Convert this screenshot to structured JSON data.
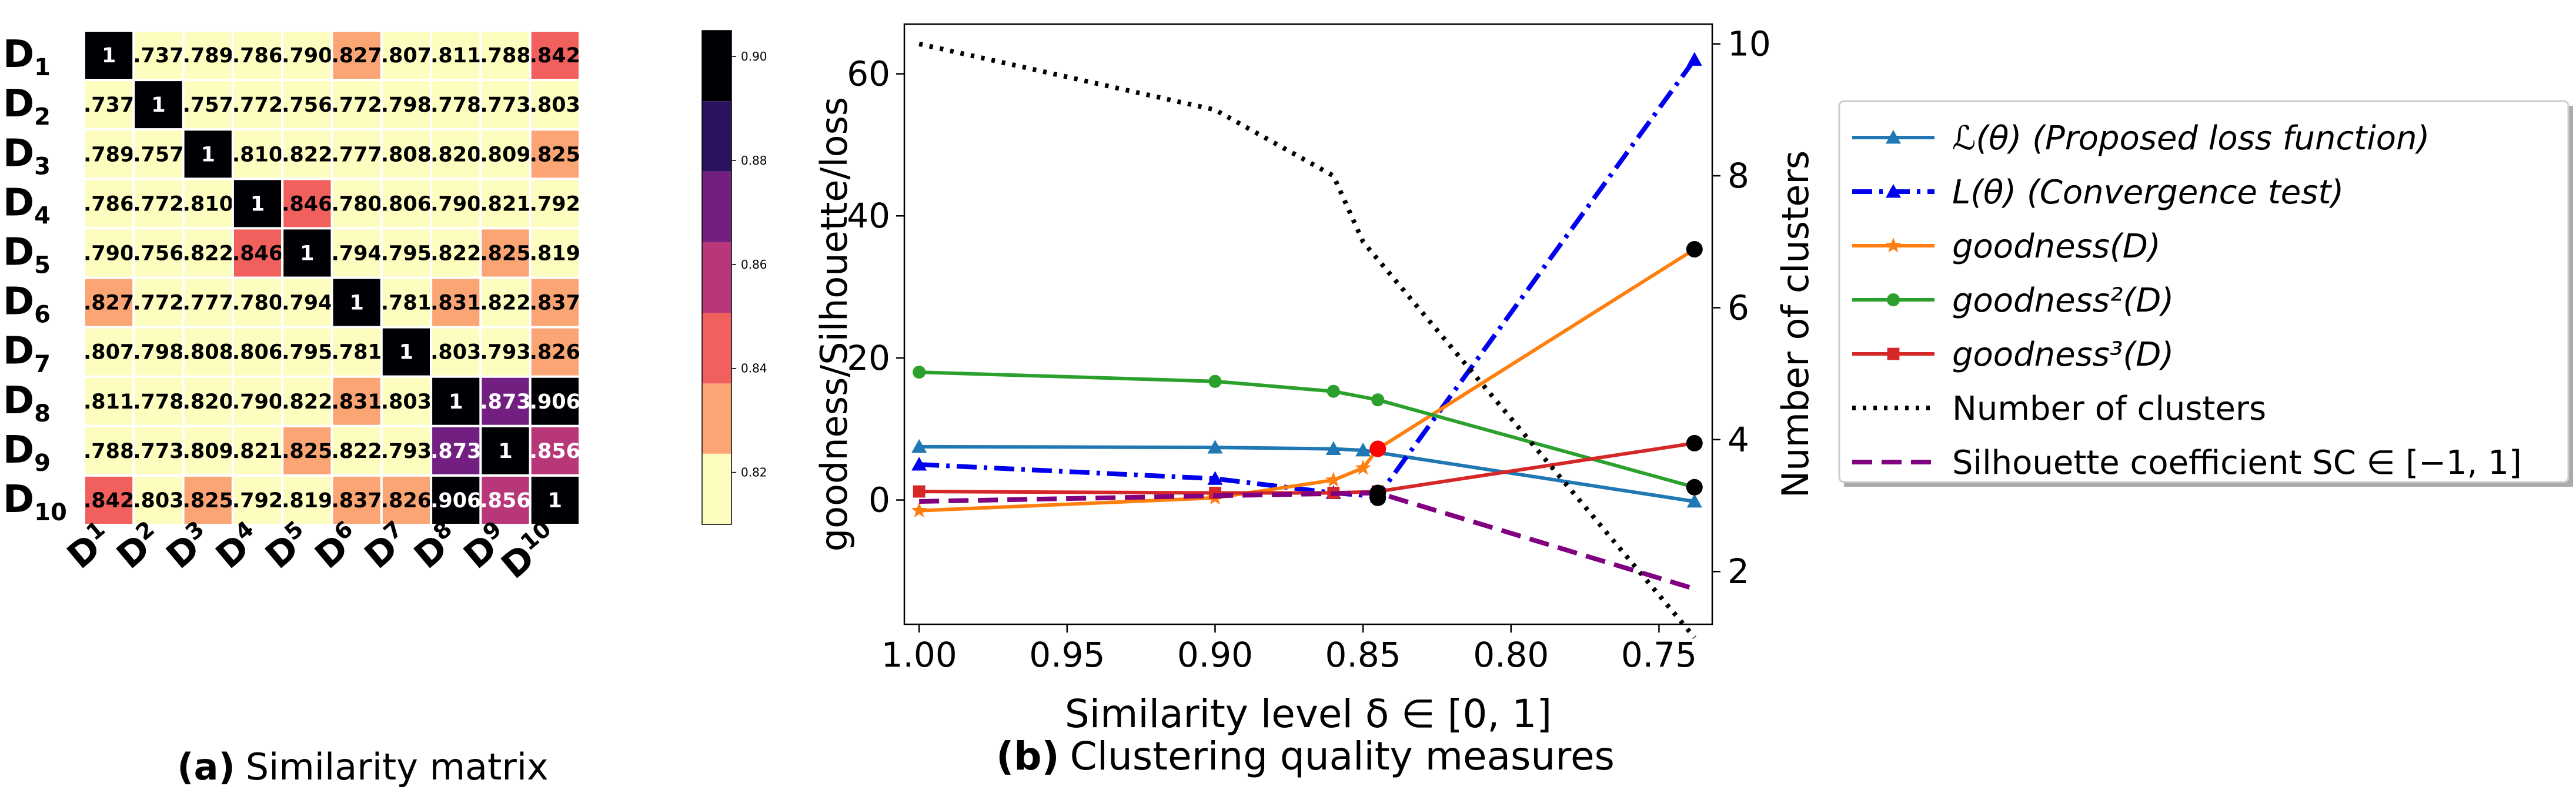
{
  "panel_a": {
    "caption_bold": "(a)",
    "caption_text": "Similarity matrix"
  },
  "panel_b": {
    "caption_bold": "(b)",
    "caption_text": "Clustering quality measures"
  },
  "chart_data": [
    {
      "type": "heatmap",
      "title": "Similarity matrix",
      "row_labels": [
        {
          "base": "D",
          "sub": "1"
        },
        {
          "base": "D",
          "sub": "2"
        },
        {
          "base": "D",
          "sub": "3"
        },
        {
          "base": "D",
          "sub": "4"
        },
        {
          "base": "D",
          "sub": "5"
        },
        {
          "base": "D",
          "sub": "6"
        },
        {
          "base": "D",
          "sub": "7"
        },
        {
          "base": "D",
          "sub": "8"
        },
        {
          "base": "D",
          "sub": "9"
        },
        {
          "base": "D",
          "sub": "10"
        }
      ],
      "col_labels": [
        {
          "base": "D",
          "sub": "1"
        },
        {
          "base": "D",
          "sub": "2"
        },
        {
          "base": "D",
          "sub": "3"
        },
        {
          "base": "D",
          "sub": "4"
        },
        {
          "base": "D",
          "sub": "5"
        },
        {
          "base": "D",
          "sub": "6"
        },
        {
          "base": "D",
          "sub": "7"
        },
        {
          "base": "D",
          "sub": "8"
        },
        {
          "base": "D",
          "sub": "9"
        },
        {
          "base": "D",
          "sub": "10"
        }
      ],
      "values": [
        [
          1,
          0.737,
          0.789,
          0.786,
          0.79,
          0.827,
          0.807,
          0.811,
          0.788,
          0.842
        ],
        [
          0.737,
          1,
          0.757,
          0.772,
          0.756,
          0.772,
          0.798,
          0.778,
          0.773,
          0.803
        ],
        [
          0.789,
          0.757,
          1,
          0.81,
          0.822,
          0.777,
          0.808,
          0.82,
          0.809,
          0.825
        ],
        [
          0.786,
          0.772,
          0.81,
          1,
          0.846,
          0.78,
          0.806,
          0.79,
          0.821,
          0.792
        ],
        [
          0.79,
          0.756,
          0.822,
          0.846,
          1,
          0.794,
          0.795,
          0.822,
          0.825,
          0.819
        ],
        [
          0.827,
          0.772,
          0.777,
          0.78,
          0.794,
          1,
          0.781,
          0.831,
          0.822,
          0.837
        ],
        [
          0.807,
          0.798,
          0.808,
          0.806,
          0.795,
          0.781,
          1,
          0.803,
          0.793,
          0.826
        ],
        [
          0.811,
          0.778,
          0.82,
          0.79,
          0.822,
          0.831,
          0.803,
          1,
          0.873,
          0.906
        ],
        [
          0.788,
          0.773,
          0.809,
          0.821,
          0.825,
          0.822,
          0.793,
          0.873,
          1,
          0.856
        ],
        [
          0.842,
          0.803,
          0.825,
          0.792,
          0.819,
          0.837,
          0.826,
          0.906,
          0.856,
          1
        ]
      ],
      "labels": [
        [
          "1",
          ".737",
          ".789",
          ".786",
          ".790",
          ".827",
          ".807",
          ".811",
          ".788",
          ".842"
        ],
        [
          ".737",
          "1",
          ".757",
          ".772",
          ".756",
          ".772",
          ".798",
          ".778",
          ".773",
          ".803"
        ],
        [
          ".789",
          ".757",
          "1",
          ".810",
          ".822",
          ".777",
          ".808",
          ".820",
          ".809",
          ".825"
        ],
        [
          ".786",
          ".772",
          ".810",
          "1",
          ".846",
          ".780",
          ".806",
          ".790",
          ".821",
          ".792"
        ],
        [
          ".790",
          ".756",
          ".822",
          ".846",
          "1",
          ".794",
          ".795",
          ".822",
          ".825",
          ".819"
        ],
        [
          ".827",
          ".772",
          ".777",
          ".780",
          ".794",
          "1",
          ".781",
          ".831",
          ".822",
          ".837"
        ],
        [
          ".807",
          ".798",
          ".808",
          ".806",
          ".795",
          ".781",
          "1",
          ".803",
          ".793",
          ".826"
        ],
        [
          ".811",
          ".778",
          ".820",
          ".790",
          ".822",
          ".831",
          ".803",
          "1",
          ".873",
          ".906"
        ],
        [
          ".788",
          ".773",
          ".809",
          ".821",
          ".825",
          ".822",
          ".793",
          ".873",
          "1",
          ".856"
        ],
        [
          ".842",
          ".803",
          ".825",
          ".792",
          ".819",
          ".837",
          ".826",
          ".906",
          ".856",
          "1"
        ]
      ],
      "colorbar": {
        "range": [
          0.81,
          0.905
        ],
        "ticks": [
          0.82,
          0.84,
          0.86,
          0.88,
          0.9
        ],
        "tick_labels": [
          "0.82",
          "0.84",
          "0.86",
          "0.88",
          "0.90"
        ],
        "bins": [
          {
            "from": 0.81,
            "to": 0.8236,
            "color": "#fcfdbf"
          },
          {
            "from": 0.8236,
            "to": 0.8371,
            "color": "#fca574"
          },
          {
            "from": 0.8371,
            "to": 0.8507,
            "color": "#f1605d"
          },
          {
            "from": 0.8507,
            "to": 0.8643,
            "color": "#b73779"
          },
          {
            "from": 0.8643,
            "to": 0.8779,
            "color": "#721f81"
          },
          {
            "from": 0.8779,
            "to": 0.8914,
            "color": "#2c115f"
          },
          {
            "from": 0.8914,
            "to": 0.905,
            "color": "#000004"
          }
        ]
      }
    },
    {
      "type": "line",
      "title": "Clustering quality measures",
      "xlabel": "Similarity level δ ∈ [0, 1]",
      "ylabel_left": "goodness/Silhouette/loss",
      "ylabel_right": "Number of clusters",
      "x_inverted": true,
      "xlim": [
        1.005,
        0.732
      ],
      "ylim_left": [
        -17.5,
        67
      ],
      "ylim_right": [
        1.2,
        10.3
      ],
      "xticks": [
        1.0,
        0.95,
        0.9,
        0.85,
        0.8,
        0.75
      ],
      "xtick_labels": [
        "1.00",
        "0.95",
        "0.90",
        "0.85",
        "0.80",
        "0.75"
      ],
      "yticks_left": [
        0,
        20,
        40,
        60
      ],
      "yticks_right": [
        2,
        4,
        6,
        8,
        10
      ],
      "series": [
        {
          "name": "ℒ(θ) (Proposed loss function)",
          "axis": "left",
          "color": "#1f77b4",
          "dash": "solid",
          "marker": "triangle",
          "x": [
            1.0,
            0.9,
            0.86,
            0.85,
            0.738
          ],
          "y": [
            7.5,
            7.4,
            7.2,
            7.0,
            -0.2
          ]
        },
        {
          "name": "L(θ) (Convergence test)",
          "axis": "left",
          "color": "#0000ee",
          "dash": "dashdot",
          "marker": "triangle",
          "x": [
            1.0,
            0.9,
            0.86,
            0.845,
            0.738
          ],
          "y": [
            5.0,
            3.0,
            1.0,
            0.5,
            62.0
          ]
        },
        {
          "name": "goodness(D)",
          "axis": "left",
          "color": "#ff7f0e",
          "dash": "solid",
          "marker": "star",
          "x": [
            1.0,
            0.9,
            0.86,
            0.85,
            0.845,
            0.738
          ],
          "y": [
            -1.5,
            0.3,
            2.8,
            4.5,
            7.2,
            35.3
          ]
        },
        {
          "name": "goodness²(D)",
          "axis": "left",
          "color": "#2ca02c",
          "dash": "solid",
          "marker": "circle",
          "x": [
            1.0,
            0.9,
            0.86,
            0.845,
            0.738
          ],
          "y": [
            18.0,
            16.7,
            15.3,
            14.1,
            1.8
          ]
        },
        {
          "name": "goodness³(D)",
          "axis": "left",
          "color": "#d62728",
          "dash": "solid",
          "marker": "square",
          "x": [
            1.0,
            0.9,
            0.86,
            0.845,
            0.738
          ],
          "y": [
            1.2,
            1.0,
            1.0,
            1.2,
            8.0
          ]
        },
        {
          "name": "Number of clusters",
          "axis": "right",
          "color": "#000000",
          "dash": "dotted",
          "marker": "none",
          "x": [
            1.0,
            0.9,
            0.86,
            0.85,
            0.738
          ],
          "y": [
            10,
            9,
            8,
            7,
            1
          ]
        },
        {
          "name": "Silhouette coefficient SC ∈ [−1, 1]",
          "axis": "left",
          "color": "#800080",
          "dash": "dashed",
          "marker": "none",
          "x": [
            1.0,
            0.9,
            0.86,
            0.845,
            0.738
          ],
          "y": [
            -0.2,
            0.6,
            0.9,
            1.0,
            -12.5
          ]
        }
      ],
      "highlight_points": [
        {
          "x": 0.845,
          "y": 7.2,
          "color": "#ff0000"
        },
        {
          "x": 0.845,
          "y": 1.0,
          "color": "#000000"
        },
        {
          "x": 0.845,
          "y": 0.3,
          "color": "#000000"
        },
        {
          "x": 0.738,
          "y": 35.3,
          "color": "#000000"
        },
        {
          "x": 0.738,
          "y": 8.0,
          "color": "#000000"
        },
        {
          "x": 0.738,
          "y": 1.8,
          "color": "#000000"
        }
      ],
      "legend_position": "right"
    }
  ]
}
